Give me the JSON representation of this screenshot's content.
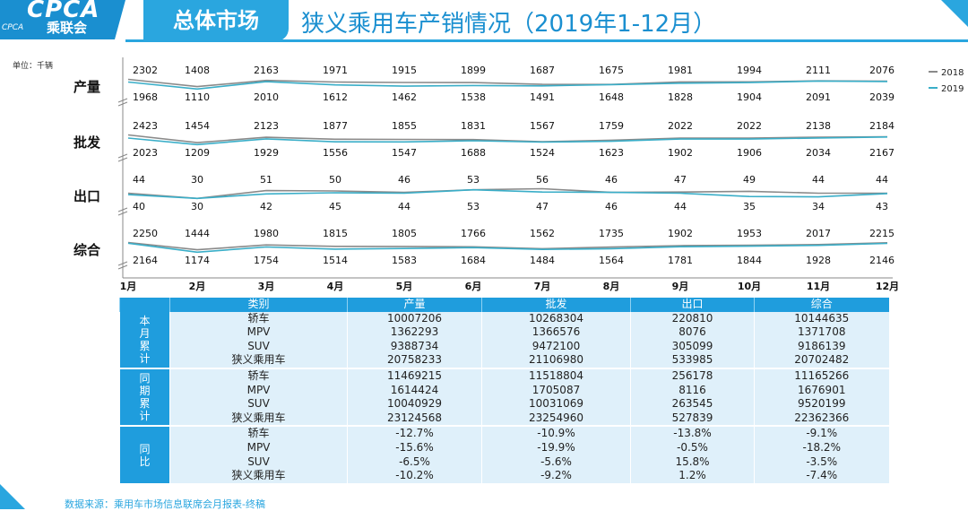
{
  "header": {
    "logo_text": "CPCA",
    "logo_sub": "乘联会",
    "logo_mini": "CPCA",
    "section_tab": "总体市场",
    "title": "狭义乘用车产销情况（2019年1-12月）"
  },
  "colors": {
    "accent": "#2aa6df",
    "series_2018": "#8a8a8a",
    "series_2019": "#3aaec8",
    "table_header": "#1f9ddd",
    "table_cell": "#dff0fa"
  },
  "chart_data": {
    "type": "line",
    "unit_label": "单位：千辆",
    "categories": [
      "1月",
      "2月",
      "3月",
      "4月",
      "5月",
      "6月",
      "7月",
      "8月",
      "9月",
      "10月",
      "11月",
      "12月"
    ],
    "legend": [
      "2018",
      "2019"
    ],
    "legend_position": "right",
    "panels": [
      {
        "name": "产量",
        "series": [
          {
            "name": "2018",
            "values": [
              2302,
              1408,
              2163,
              1971,
              1915,
              1899,
              1687,
              1675,
              1981,
              1994,
              2111,
              2076
            ]
          },
          {
            "name": "2019",
            "values": [
              1968,
              1110,
              2010,
              1612,
              1462,
              1538,
              1491,
              1648,
              1828,
              1904,
              2091,
              2039
            ]
          }
        ]
      },
      {
        "name": "批发",
        "series": [
          {
            "name": "2018",
            "values": [
              2423,
              1454,
              2123,
              1877,
              1855,
              1831,
              1567,
              1759,
              2022,
              2022,
              2138,
              2184
            ]
          },
          {
            "name": "2019",
            "values": [
              2023,
              1209,
              1929,
              1556,
              1547,
              1688,
              1524,
              1623,
              1902,
              1906,
              2034,
              2167
            ]
          }
        ]
      },
      {
        "name": "出口",
        "series": [
          {
            "name": "2018",
            "values": [
              44,
              30,
              51,
              50,
              46,
              53,
              56,
              46,
              47,
              49,
              44,
              44
            ]
          },
          {
            "name": "2019",
            "values": [
              40,
              30,
              42,
              45,
              44,
              53,
              47,
              46,
              44,
              35,
              34,
              43
            ]
          }
        ]
      },
      {
        "name": "综合",
        "series": [
          {
            "name": "2018",
            "values": [
              2250,
              1444,
              1980,
              1815,
              1805,
              1766,
              1562,
              1735,
              1902,
              1953,
              2017,
              2215
            ]
          },
          {
            "name": "2019",
            "values": [
              2164,
              1174,
              1754,
              1514,
              1583,
              1684,
              1484,
              1564,
              1781,
              1844,
              1928,
              2146
            ]
          }
        ]
      }
    ]
  },
  "table": {
    "headers": [
      "类别",
      "产量",
      "批发",
      "出口",
      "综合"
    ],
    "groups": [
      {
        "label": "本月累计",
        "rows": [
          [
            "轿车",
            "10007206",
            "10268304",
            "220810",
            "10144635"
          ],
          [
            "MPV",
            "1362293",
            "1366576",
            "8076",
            "1371708"
          ],
          [
            "SUV",
            "9388734",
            "9472100",
            "305099",
            "9186139"
          ],
          [
            "狭义乘用车",
            "20758233",
            "21106980",
            "533985",
            "20702482"
          ]
        ]
      },
      {
        "label": "同期累计",
        "rows": [
          [
            "轿车",
            "11469215",
            "11518804",
            "256178",
            "11165266"
          ],
          [
            "MPV",
            "1614424",
            "1705087",
            "8116",
            "1676901"
          ],
          [
            "SUV",
            "10040929",
            "10031069",
            "263545",
            "9520199"
          ],
          [
            "狭义乘用车",
            "23124568",
            "23254960",
            "527839",
            "22362366"
          ]
        ]
      },
      {
        "label": "同比",
        "rows": [
          [
            "轿车",
            "-12.7%",
            "-10.9%",
            "-13.8%",
            "-9.1%"
          ],
          [
            "MPV",
            "-15.6%",
            "-19.9%",
            "-0.5%",
            "-18.2%"
          ],
          [
            "SUV",
            "-6.5%",
            "-5.6%",
            "15.8%",
            "-3.5%"
          ],
          [
            "狭义乘用车",
            "-10.2%",
            "-9.2%",
            "1.2%",
            "-7.4%"
          ]
        ]
      }
    ]
  },
  "footer": {
    "source": "数据来源：乘用车市场信息联席会月报表-终稿"
  }
}
